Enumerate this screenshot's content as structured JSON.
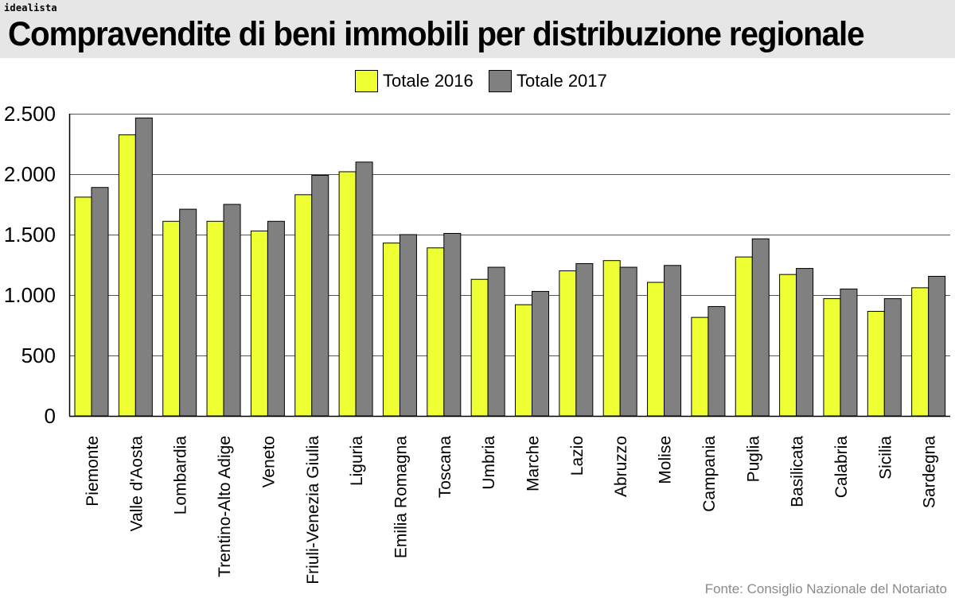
{
  "brand": "idealista",
  "title": "Compravendite di beni immobili per distribuzione regionale",
  "source": "Fonte: Consiglio Nazionale del Notariato",
  "colors": {
    "series_2016": "#eeff33",
    "series_2017": "#808080",
    "header_bg": "#e6e6e6"
  },
  "chart_data": {
    "type": "bar",
    "title": "Compravendite di beni immobili per distribuzione regionale",
    "xlabel": "",
    "ylabel": "",
    "ylim": [
      0,
      2500
    ],
    "yticks": [
      0,
      500,
      1000,
      1500,
      2000,
      2500
    ],
    "ytick_labels": [
      "0",
      "500",
      "1.000",
      "1.500",
      "2.000",
      "2.500"
    ],
    "grid": true,
    "legend_position": "top-center",
    "categories": [
      "Piemonte",
      "Valle d'Aosta",
      "Lombardia",
      "Trentino-Alto Adige",
      "Veneto",
      "Friuli-Venezia Giulia",
      "Liguria",
      "Emilia Romagna",
      "Toscana",
      "Umbria",
      "Marche",
      "Lazio",
      "Abruzzo",
      "Molise",
      "Campania",
      "Puglia",
      "Basilicata",
      "Calabria",
      "Sicilia",
      "Sardegna"
    ],
    "series": [
      {
        "name": "Totale 2016",
        "values": [
          1810,
          2325,
          1610,
          1610,
          1530,
          1830,
          2020,
          1430,
          1390,
          1130,
          920,
          1200,
          1285,
          1105,
          815,
          1315,
          1170,
          970,
          865,
          1060
        ]
      },
      {
        "name": "Totale 2017",
        "values": [
          1890,
          2465,
          1710,
          1750,
          1610,
          1990,
          2100,
          1500,
          1510,
          1230,
          1030,
          1260,
          1230,
          1245,
          905,
          1465,
          1220,
          1050,
          970,
          1155
        ]
      }
    ]
  }
}
